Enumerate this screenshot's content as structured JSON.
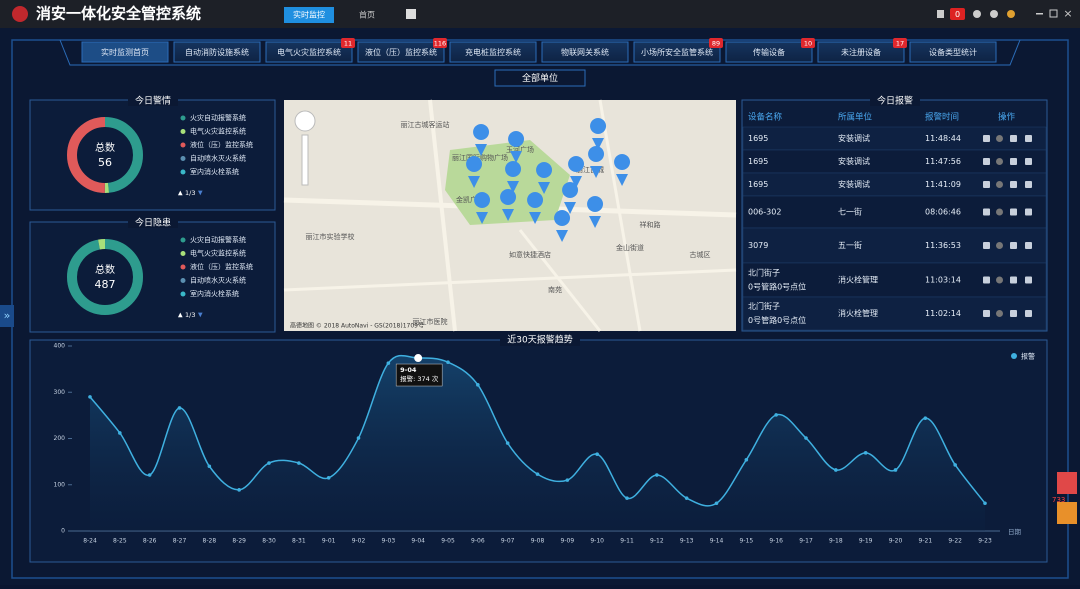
{
  "header": {
    "title": "消安一体化安全管控系统",
    "buttons": [
      "实时监控",
      "首页"
    ],
    "message_count": "0"
  },
  "tabs": [
    {
      "label": "实时监测首页"
    },
    {
      "label": "自动消防设施系统"
    },
    {
      "label": "电气火灾监控系统",
      "badge": "11"
    },
    {
      "label": "液位（压）监控系统",
      "badge": "116"
    },
    {
      "label": "充电桩监控系统"
    },
    {
      "label": "物联网关系统"
    },
    {
      "label": "小场所安全监管系统",
      "badge": "89"
    },
    {
      "label": "传输设备",
      "badge": "10"
    },
    {
      "label": "未注册设备",
      "badge": "17"
    },
    {
      "label": "设备类型统计"
    }
  ],
  "scope_label": "全部单位",
  "alarm_panel": {
    "title": "今日警情",
    "total_label": "总数",
    "total": 56,
    "pager": "1/3",
    "series": [
      {
        "name": "火灾自动报警系统",
        "color": "#2e9c8e",
        "value": 27
      },
      {
        "name": "电气火灾监控系统",
        "color": "#a8e07a",
        "value": 1
      },
      {
        "name": "液位（压）监控系统",
        "color": "#e05a5a",
        "value": 28
      },
      {
        "name": "自动喷水灭火系统",
        "color": "#5b8fb0",
        "value": 0
      },
      {
        "name": "室内消火栓系统",
        "color": "#3ab8c8",
        "value": 0
      }
    ]
  },
  "hazard_panel": {
    "title": "今日隐患",
    "total_label": "总数",
    "total": 487,
    "pager": "1/3",
    "series": [
      {
        "name": "火灾自动报警系统",
        "color": "#2e9c8e",
        "value": 472
      },
      {
        "name": "电气火灾监控系统",
        "color": "#a8e07a",
        "value": 15
      },
      {
        "name": "液位（压）监控系统",
        "color": "#e05a5a",
        "value": 0
      },
      {
        "name": "自动喷水灭火系统",
        "color": "#5b8fb0",
        "value": 0
      },
      {
        "name": "室内消火栓系统",
        "color": "#3ab8c8",
        "value": 0
      }
    ]
  },
  "map": {
    "labels": [
      "丽江古城客运站",
      "丽江国际购物广场",
      "玉河广场",
      "金凯广场",
      "丽江市实验学校",
      "如意快捷酒店",
      "丽江古城",
      "南苑",
      "丽江市医院",
      "祥和路",
      "金山街道",
      "古城区"
    ],
    "attribution": "高德地图 © 2018 AutoNavi - GS(2018)1709号"
  },
  "alarm_table": {
    "title": "今日报警",
    "columns": [
      "设备名称",
      "所属单位",
      "报警时间",
      "操作"
    ],
    "rows": [
      {
        "device": "1695",
        "unit": "安装调试",
        "time": "11:48:44"
      },
      {
        "device": "1695",
        "unit": "安装调试",
        "time": "11:47:56"
      },
      {
        "device": "1695",
        "unit": "安装调试",
        "time": "11:41:09"
      },
      {
        "device": "006-302",
        "unit": "七一街",
        "time": "08:06:46"
      },
      {
        "device": "3079",
        "unit": "五一街",
        "time": "11:36:53"
      },
      {
        "device": "北门街子",
        "device_line2": "0号管路0号点位",
        "unit": "消火栓管理",
        "time": "11:03:14"
      },
      {
        "device": "北门街子",
        "device_line2": "0号管路0号点位",
        "unit": "消火栓管理",
        "time": "11:02:14"
      }
    ]
  },
  "trend_chart": {
    "type": "line",
    "title": "近30天报警趋势",
    "x_label": "日期",
    "categories": [
      "8-24",
      "8-25",
      "8-26",
      "8-27",
      "8-28",
      "8-29",
      "8-30",
      "8-31",
      "9-01",
      "9-02",
      "9-03",
      "9-04",
      "9-05",
      "9-06",
      "9-07",
      "9-08",
      "9-09",
      "9-10",
      "9-11",
      "9-12",
      "9-13",
      "9-14",
      "9-15",
      "9-16",
      "9-17",
      "9-18",
      "9-19",
      "9-20",
      "9-21",
      "9-22",
      "9-23"
    ],
    "series": [
      {
        "name": "报警",
        "color": "#3fb0e0",
        "values": [
          290,
          212,
          121,
          266,
          140,
          89,
          147,
          147,
          115,
          201,
          363,
          374,
          365,
          316,
          190,
          123,
          110,
          166,
          71,
          121,
          71,
          60,
          154,
          251,
          201,
          132,
          169,
          132,
          244,
          143,
          60
        ]
      }
    ],
    "ylim": [
      0,
      400
    ],
    "yticks": [
      0,
      100,
      200,
      300,
      400
    ],
    "tooltip": {
      "text": "报警: 374 次"
    }
  },
  "side_badge": "733"
}
